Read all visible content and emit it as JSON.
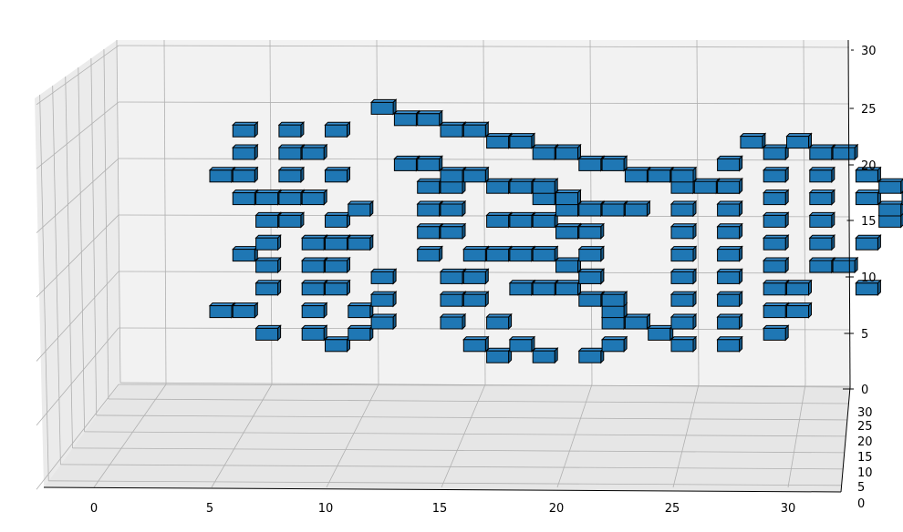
{
  "chart_data": {
    "type": "voxels",
    "title": "",
    "xlabel": "",
    "ylabel": "",
    "zlabel": "",
    "xlim": [
      0,
      32
    ],
    "ylim": [
      0,
      32
    ],
    "zlim": [
      0,
      30
    ],
    "grid": true,
    "x_ticks": [
      "0",
      "5",
      "10",
      "15",
      "20",
      "25",
      "30"
    ],
    "y_ticks": [
      "0",
      "5",
      "10",
      "15",
      "20",
      "25",
      "30"
    ],
    "z_ticks": [
      "0",
      "5",
      "10",
      "15",
      "20",
      "25",
      "30"
    ],
    "voxel_color": "#1f77b4",
    "edge_color": "#000000",
    "pane_color": "#f2f2f2",
    "grid_color": "#b0b0b0",
    "strokes": [
      {
        "name": "left-column-1",
        "points": [
          [
            6,
            22
          ],
          [
            6,
            20
          ],
          [
            6,
            18
          ],
          [
            7,
            16
          ],
          [
            7,
            14
          ],
          [
            7,
            12
          ],
          [
            7,
            10
          ],
          [
            7,
            8
          ],
          [
            6,
            6
          ],
          [
            7,
            4
          ]
        ]
      },
      {
        "name": "left-column-2",
        "points": [
          [
            8,
            22
          ],
          [
            8,
            20
          ],
          [
            8,
            18
          ],
          [
            8,
            16
          ],
          [
            8,
            14
          ],
          [
            9,
            12
          ],
          [
            9,
            10
          ],
          [
            9,
            8
          ],
          [
            9,
            6
          ],
          [
            9,
            4
          ],
          [
            10,
            3
          ]
        ]
      },
      {
        "name": "left-column-3",
        "points": [
          [
            10,
            22
          ],
          [
            9,
            20
          ],
          [
            10,
            18
          ],
          [
            9,
            16
          ],
          [
            10,
            14
          ],
          [
            10,
            12
          ],
          [
            10,
            10
          ],
          [
            10,
            8
          ],
          [
            11,
            6
          ],
          [
            11,
            4
          ]
        ]
      },
      {
        "name": "left-column-bits",
        "points": [
          [
            5,
            18
          ],
          [
            6,
            16
          ],
          [
            11,
            15
          ],
          [
            11,
            12
          ],
          [
            12,
            9
          ],
          [
            12,
            7
          ],
          [
            12,
            5
          ],
          [
            6,
            11
          ],
          [
            5,
            6
          ]
        ]
      },
      {
        "name": "top-arc",
        "points": [
          [
            12,
            24
          ],
          [
            13,
            23
          ],
          [
            14,
            23
          ],
          [
            15,
            22
          ],
          [
            16,
            22
          ],
          [
            17,
            21
          ],
          [
            18,
            21
          ],
          [
            19,
            20
          ],
          [
            20,
            20
          ],
          [
            21,
            19
          ],
          [
            22,
            19
          ],
          [
            23,
            18
          ],
          [
            24,
            18
          ],
          [
            25,
            18
          ],
          [
            26,
            17
          ],
          [
            27,
            17
          ]
        ]
      },
      {
        "name": "inner-arc",
        "points": [
          [
            13,
            19
          ],
          [
            14,
            19
          ],
          [
            15,
            18
          ],
          [
            16,
            18
          ],
          [
            17,
            17
          ],
          [
            18,
            17
          ],
          [
            19,
            16
          ],
          [
            20,
            16
          ],
          [
            21,
            15
          ],
          [
            22,
            15
          ],
          [
            23,
            15
          ]
        ]
      },
      {
        "name": "left-loop",
        "points": [
          [
            14,
            17
          ],
          [
            14,
            15
          ],
          [
            14,
            13
          ],
          [
            14,
            11
          ],
          [
            15,
            9
          ],
          [
            15,
            7
          ],
          [
            15,
            5
          ],
          [
            16,
            3
          ],
          [
            17,
            2
          ]
        ]
      },
      {
        "name": "left-loop-2",
        "points": [
          [
            15,
            17
          ],
          [
            15,
            15
          ],
          [
            15,
            13
          ],
          [
            16,
            11
          ],
          [
            16,
            9
          ],
          [
            16,
            7
          ],
          [
            17,
            5
          ],
          [
            18,
            3
          ],
          [
            19,
            2
          ]
        ]
      },
      {
        "name": "mid-blocks",
        "points": [
          [
            17,
            14
          ],
          [
            18,
            14
          ],
          [
            19,
            14
          ],
          [
            20,
            13
          ],
          [
            21,
            13
          ],
          [
            17,
            11
          ],
          [
            18,
            11
          ],
          [
            19,
            11
          ],
          [
            20,
            10
          ],
          [
            21,
            9
          ],
          [
            18,
            8
          ],
          [
            19,
            8
          ],
          [
            20,
            8
          ],
          [
            21,
            7
          ],
          [
            22,
            6
          ],
          [
            23,
            5
          ],
          [
            24,
            4
          ]
        ]
      },
      {
        "name": "center-column",
        "points": [
          [
            19,
            17
          ],
          [
            20,
            15
          ],
          [
            20,
            13
          ],
          [
            21,
            11
          ],
          [
            21,
            9
          ],
          [
            22,
            7
          ],
          [
            22,
            5
          ],
          [
            22,
            3
          ],
          [
            21,
            2
          ]
        ]
      },
      {
        "name": "right-column-1",
        "points": [
          [
            25,
            17
          ],
          [
            25,
            15
          ],
          [
            25,
            13
          ],
          [
            25,
            11
          ],
          [
            25,
            9
          ],
          [
            25,
            7
          ],
          [
            25,
            5
          ],
          [
            25,
            3
          ]
        ]
      },
      {
        "name": "right-column-2",
        "points": [
          [
            27,
            19
          ],
          [
            27,
            17
          ],
          [
            27,
            15
          ],
          [
            27,
            13
          ],
          [
            27,
            11
          ],
          [
            27,
            9
          ],
          [
            27,
            7
          ],
          [
            27,
            5
          ],
          [
            27,
            3
          ]
        ]
      },
      {
        "name": "right-column-3",
        "points": [
          [
            29,
            20
          ],
          [
            29,
            18
          ],
          [
            29,
            16
          ],
          [
            29,
            14
          ],
          [
            29,
            12
          ],
          [
            29,
            10
          ],
          [
            29,
            8
          ],
          [
            29,
            6
          ],
          [
            29,
            4
          ]
        ]
      },
      {
        "name": "right-column-4",
        "points": [
          [
            31,
            20
          ],
          [
            31,
            18
          ],
          [
            31,
            16
          ],
          [
            31,
            14
          ],
          [
            31,
            12
          ],
          [
            31,
            10
          ],
          [
            30,
            8
          ],
          [
            30,
            6
          ]
        ]
      },
      {
        "name": "right-top",
        "points": [
          [
            28,
            21
          ],
          [
            30,
            21
          ],
          [
            32,
            20
          ],
          [
            33,
            18
          ],
          [
            33,
            16
          ],
          [
            34,
            14
          ],
          [
            33,
            12
          ],
          [
            32,
            10
          ],
          [
            33,
            8
          ]
        ]
      },
      {
        "name": "right-tail",
        "points": [
          [
            35,
            16
          ],
          [
            34,
            17
          ],
          [
            34,
            15
          ]
        ]
      }
    ]
  }
}
